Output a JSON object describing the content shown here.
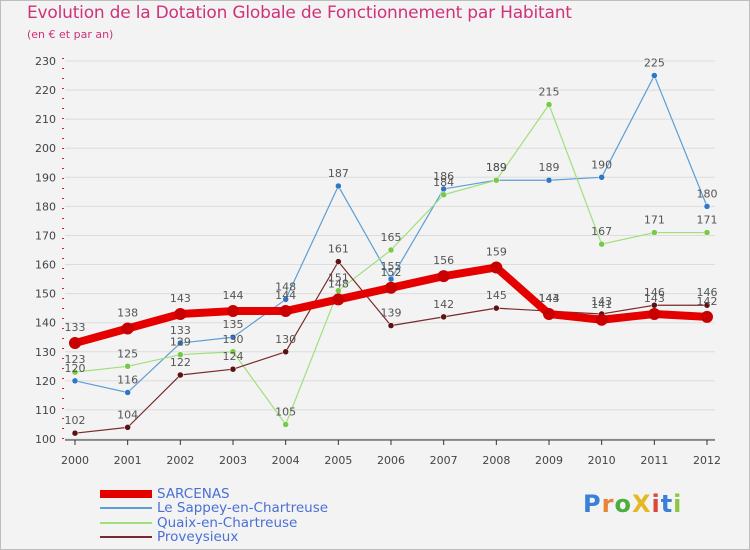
{
  "title": "Evolution de la Dotation Globale de Fonctionnement par Habitant",
  "subtitle": "(en € et par an)",
  "logo": {
    "text": "ProXiti",
    "colors": [
      "#3b7fd8",
      "#e8833a",
      "#4cae3f",
      "#e6b623",
      "#d8473a",
      "#3b7fd8",
      "#8cc63f"
    ]
  },
  "chart_data": {
    "type": "line",
    "title": "Evolution de la Dotation Globale de Fonctionnement par Habitant",
    "ylabel": "(en € et par an)",
    "categories": [
      "2000",
      "2001",
      "2002",
      "2003",
      "2004",
      "2005",
      "2006",
      "2007",
      "2008",
      "2009",
      "2010",
      "2011",
      "2012"
    ],
    "ylim": [
      100,
      230
    ],
    "yticks": [
      100,
      110,
      120,
      130,
      140,
      150,
      160,
      170,
      180,
      190,
      200,
      210,
      220,
      230
    ],
    "legend_position": "bottom-left",
    "series": [
      {
        "name": "SARCENAS",
        "color": "#e50000",
        "marker": "#c80000",
        "width": 8,
        "values": [
          133,
          138,
          143,
          144,
          144,
          148,
          152,
          156,
          159,
          143,
          141,
          143,
          142
        ]
      },
      {
        "name": "Le Sappey-en-Chartreuse",
        "color": "#5c9ed6",
        "marker": "#2f76c4",
        "width": 1.2,
        "values": [
          120,
          116,
          133,
          135,
          148,
          187,
          155,
          186,
          189,
          189,
          190,
          225,
          180
        ]
      },
      {
        "name": "Quaix-en-Chartreuse",
        "color": "#9fe07a",
        "marker": "#78c94a",
        "width": 1.2,
        "values": [
          123,
          125,
          129,
          130,
          105,
          151,
          165,
          184,
          189,
          215,
          167,
          171,
          171
        ]
      },
      {
        "name": "Proveysieux",
        "color": "#7a2a2a",
        "marker": "#5a1212",
        "width": 1.2,
        "values": [
          102,
          104,
          122,
          124,
          130,
          161,
          139,
          142,
          145,
          144,
          143,
          146,
          146
        ]
      }
    ]
  }
}
